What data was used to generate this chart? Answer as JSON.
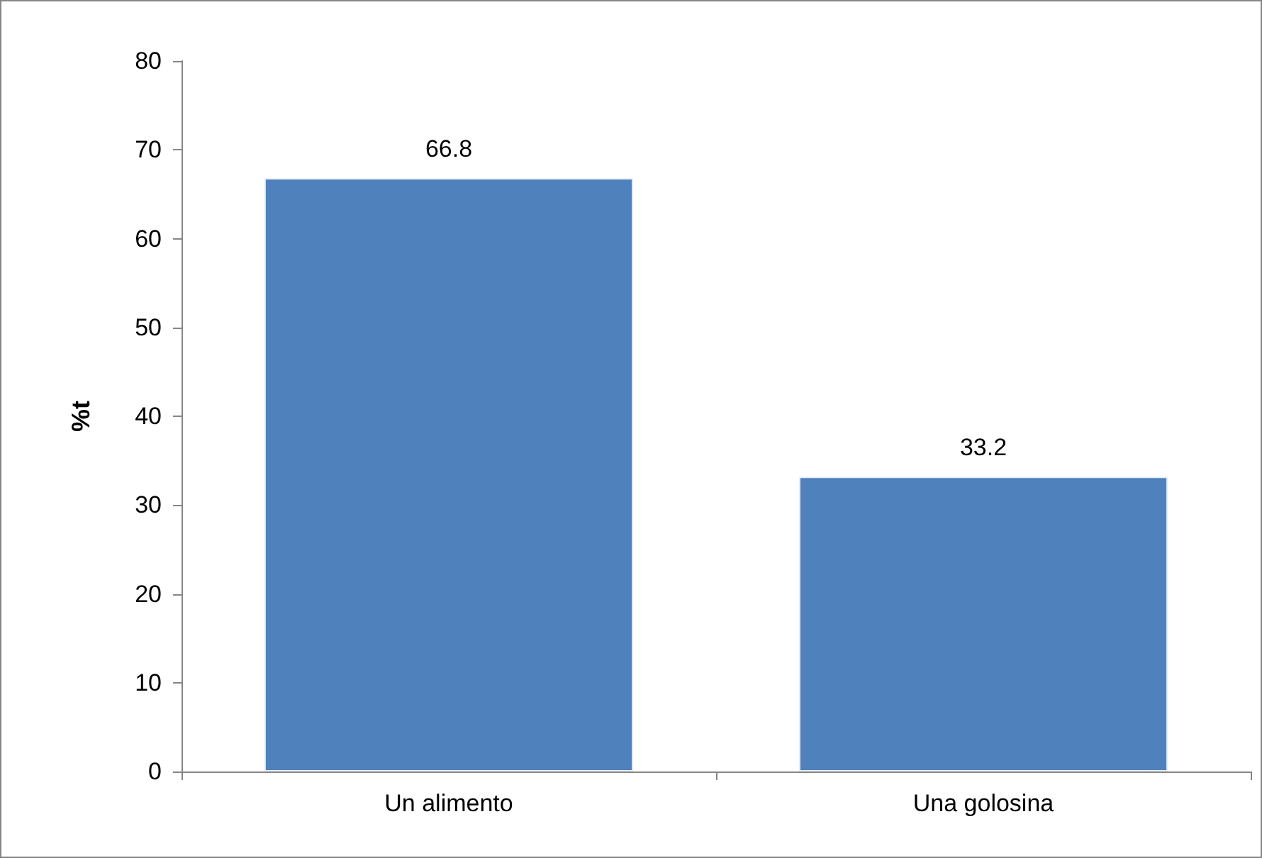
{
  "chart_data": {
    "type": "bar",
    "ylabel": "%t",
    "categories": [
      "Un alimento",
      "Una golosina"
    ],
    "values": [
      66.8,
      33.2
    ],
    "color": "#4f81bd",
    "ylim": [
      0,
      80
    ],
    "yticks": [
      0,
      10,
      20,
      30,
      40,
      50,
      60,
      70,
      80
    ],
    "grid": false,
    "data_labels": true
  }
}
